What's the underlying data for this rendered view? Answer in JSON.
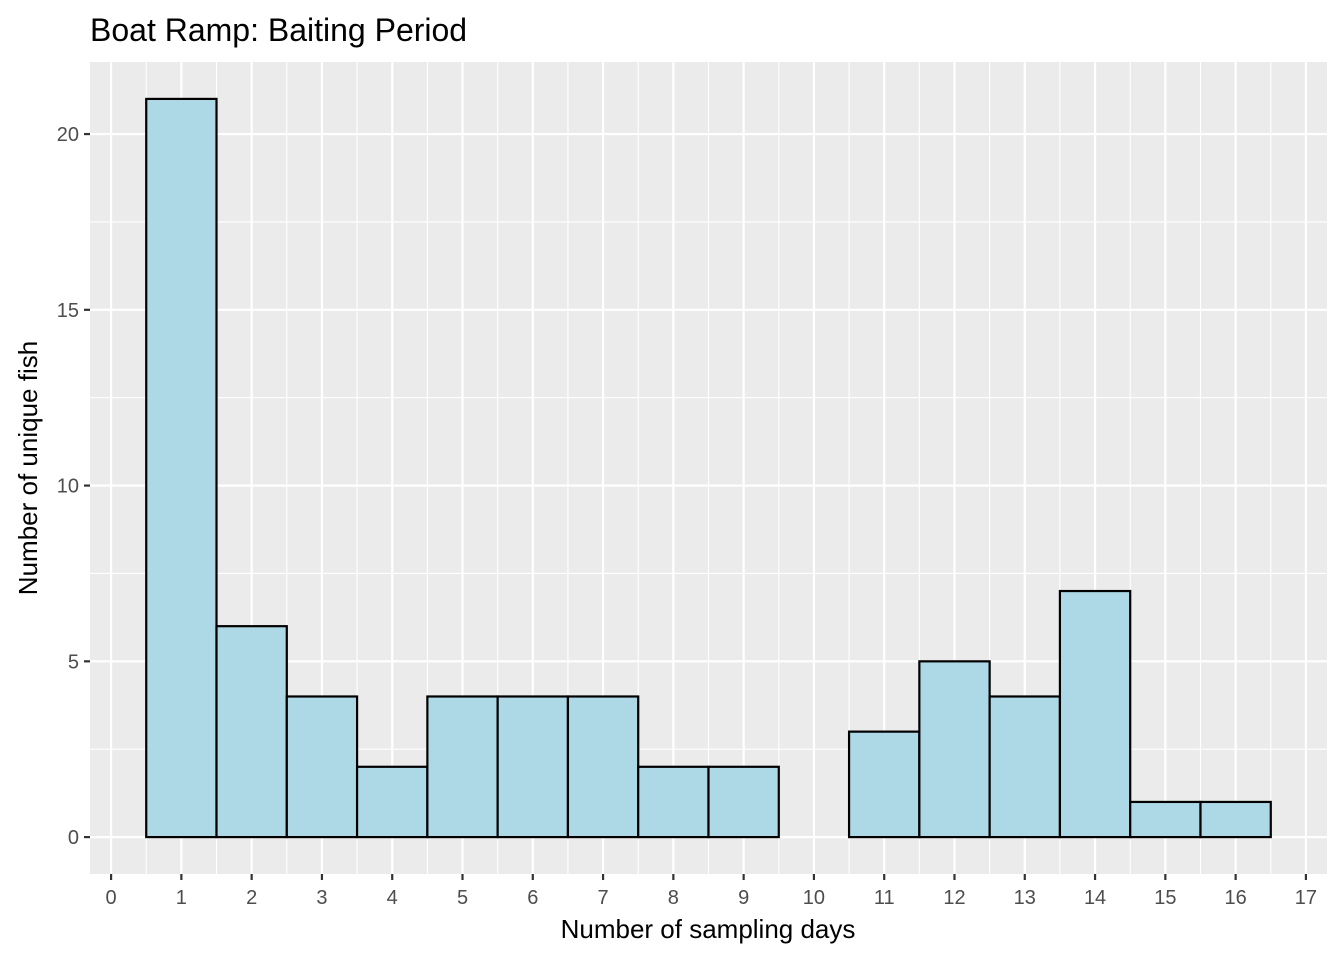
{
  "chart_data": {
    "type": "bar",
    "title": "Boat Ramp: Baiting Period",
    "xlabel": "Number of sampling days",
    "ylabel": "Number of unique fish",
    "x": [
      1,
      2,
      3,
      4,
      5,
      6,
      7,
      8,
      9,
      10,
      11,
      12,
      13,
      14,
      15,
      16
    ],
    "values": [
      21,
      6,
      4,
      2,
      4,
      4,
      4,
      2,
      2,
      0,
      3,
      5,
      4,
      7,
      1,
      1
    ],
    "bin_width": 1,
    "xlim": [
      -0.3,
      17.3
    ],
    "ylim": [
      -1.05,
      22.05
    ],
    "x_ticks": [
      0,
      1,
      2,
      3,
      4,
      5,
      6,
      7,
      8,
      9,
      10,
      11,
      12,
      13,
      14,
      15,
      16,
      17
    ],
    "y_ticks": [
      0,
      5,
      10,
      15,
      20
    ],
    "grid": true,
    "legend": "none",
    "colors": {
      "bar_fill": "#add8e6",
      "bar_stroke": "#000000",
      "panel_background": "#ebebeb",
      "grid_line": "#ffffff"
    }
  }
}
